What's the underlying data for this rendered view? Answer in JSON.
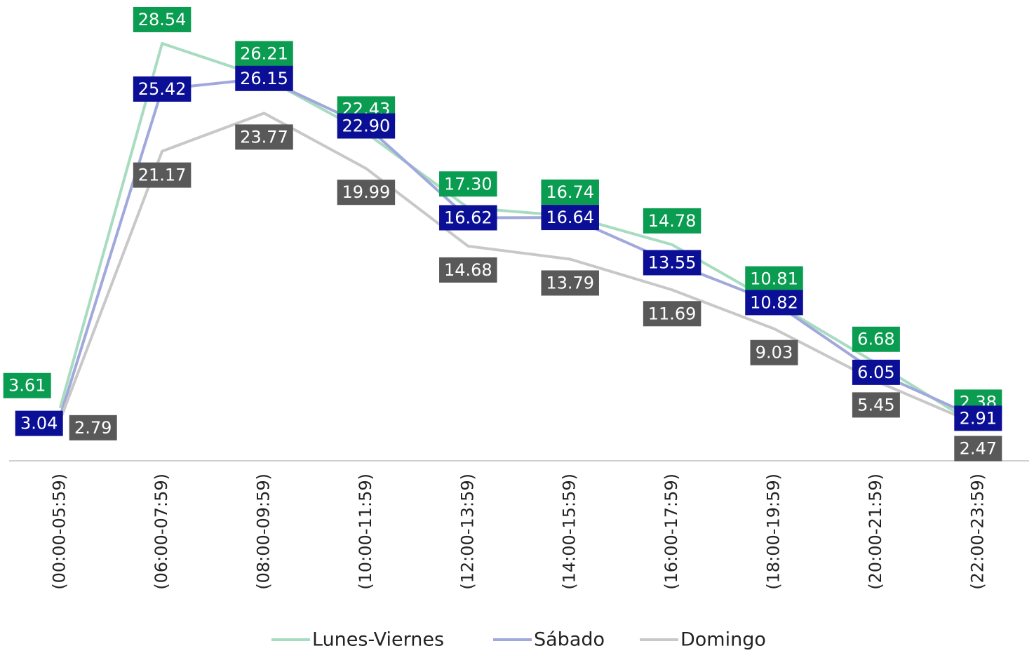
{
  "chart_data": {
    "type": "line",
    "categories": [
      "(00:00-05:59)",
      "(06:00-07:59)",
      "(08:00-09:59)",
      "(10:00-11:59)",
      "(12:00-13:59)",
      "(14:00-15:59)",
      "(16:00-17:59)",
      "(18:00-19:59)",
      "(20:00-21:59)",
      "(22:00-23:59)"
    ],
    "ylim": [
      0,
      30
    ],
    "series": [
      {
        "name": "Lunes-Viernes",
        "color": "#a8dcc0",
        "label_color": "#0a9c50",
        "values": [
          3.61,
          28.54,
          26.21,
          22.43,
          17.3,
          16.74,
          14.78,
          10.81,
          6.68,
          2.38
        ],
        "value_labels": [
          "3.61",
          "28.54",
          "26.21",
          "22.43",
          "17.30",
          "16.74",
          "14.78",
          "10.81",
          "6.68",
          "2.38"
        ]
      },
      {
        "name": "Sábado",
        "color": "#a0a8dc",
        "label_color": "#0a0f96",
        "values": [
          3.04,
          25.42,
          26.15,
          22.9,
          16.62,
          16.64,
          13.55,
          10.82,
          6.05,
          2.91
        ],
        "value_labels": [
          "3.04",
          "25.42",
          "26.15",
          "22.90",
          "16.62",
          "16.64",
          "13.55",
          "10.82",
          "6.05",
          "2.91"
        ]
      },
      {
        "name": "Domingo",
        "color": "#c8c8c8",
        "label_color": "#595959",
        "values": [
          2.79,
          21.17,
          23.77,
          19.99,
          14.68,
          13.79,
          11.69,
          9.03,
          5.45,
          2.47
        ],
        "value_labels": [
          "2.79",
          "21.17",
          "23.77",
          "19.99",
          "14.68",
          "13.79",
          "11.69",
          "9.03",
          "5.45",
          "2.47"
        ]
      }
    ]
  }
}
